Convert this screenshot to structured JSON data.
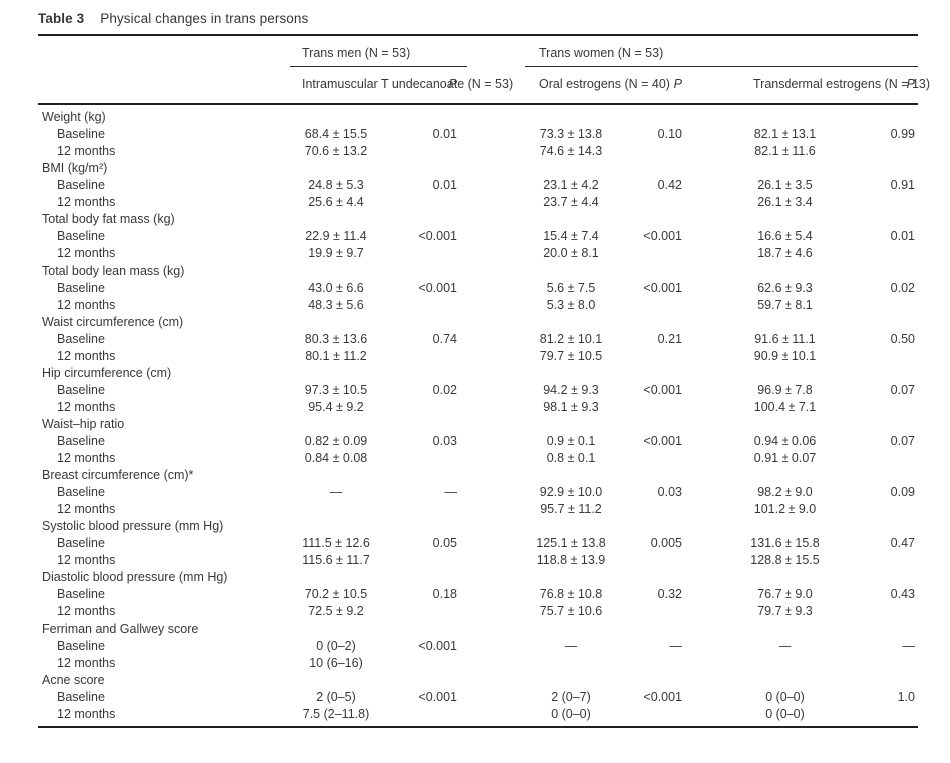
{
  "table": {
    "label": "Table 3",
    "title": "Physical changes in trans persons",
    "header": {
      "groups": [
        {
          "label": "Trans men (N = 53)"
        },
        {
          "label": "Trans women (N = 53)"
        }
      ],
      "subcolumns": [
        {
          "label": [
            "Intramuscular T",
            "undecanoate",
            "(N = 53)"
          ]
        },
        {
          "label": "P"
        },
        {
          "label": [
            "Oral",
            "estrogens",
            "(N = 40)"
          ]
        },
        {
          "label": "P"
        },
        {
          "label": [
            "Transdermal",
            "estrogens",
            "(N = 13)"
          ]
        },
        {
          "label": "P"
        }
      ]
    },
    "row_labels": {
      "baseline": "Baseline",
      "followup": "12 months"
    },
    "sections": [
      {
        "header": "Weight (kg)",
        "rows": [
          {
            "label": "Baseline",
            "cells": [
              "68.4 ± 15.5",
              "0.01",
              "73.3 ± 13.8",
              "0.10",
              "82.1 ± 13.1",
              "0.99"
            ]
          },
          {
            "label": "12 months",
            "cells": [
              "70.6 ± 13.2",
              "",
              "74.6 ± 14.3",
              "",
              "82.1 ± 11.6",
              ""
            ]
          }
        ]
      },
      {
        "header": "BMI (kg/m²)",
        "rows": [
          {
            "label": "Baseline",
            "cells": [
              "24.8 ± 5.3",
              "0.01",
              "23.1 ± 4.2",
              "0.42",
              "26.1 ± 3.5",
              "0.91"
            ]
          },
          {
            "label": "12 months",
            "cells": [
              "25.6 ± 4.4",
              "",
              "23.7 ± 4.4",
              "",
              "26.1 ± 3.4",
              ""
            ]
          }
        ]
      },
      {
        "header": "Total body fat mass (kg)",
        "rows": [
          {
            "label": "Baseline",
            "cells": [
              "22.9 ± 11.4",
              "<0.001",
              "15.4 ± 7.4",
              "<0.001",
              "16.6 ± 5.4",
              "0.01"
            ]
          },
          {
            "label": "12 months",
            "cells": [
              "19.9 ± 9.7",
              "",
              "20.0 ± 8.1",
              "",
              "18.7 ± 4.6",
              ""
            ]
          }
        ]
      },
      {
        "header": "Total body lean mass (kg)",
        "rows": [
          {
            "label": "Baseline",
            "cells": [
              "43.0 ± 6.6",
              "<0.001",
              "5.6 ± 7.5",
              "<0.001",
              "62.6 ± 9.3",
              "0.02"
            ]
          },
          {
            "label": "12 months",
            "cells": [
              "48.3 ± 5.6",
              "",
              "5.3 ± 8.0",
              "",
              "59.7 ± 8.1",
              ""
            ]
          }
        ]
      },
      {
        "header": "Waist circumference (cm)",
        "rows": [
          {
            "label": "Baseline",
            "cells": [
              "80.3 ± 13.6",
              "0.74",
              "81.2 ± 10.1",
              "0.21",
              "91.6 ± 11.1",
              "0.50"
            ]
          },
          {
            "label": "12 months",
            "cells": [
              "80.1 ± 11.2",
              "",
              "79.7 ± 10.5",
              "",
              "90.9 ± 10.1",
              ""
            ]
          }
        ]
      },
      {
        "header": "Hip circumference (cm)",
        "rows": [
          {
            "label": "Baseline",
            "cells": [
              "97.3 ± 10.5",
              "0.02",
              "94.2 ± 9.3",
              "<0.001",
              "96.9 ± 7.8",
              "0.07"
            ]
          },
          {
            "label": "12 months",
            "cells": [
              "95.4 ± 9.2",
              "",
              "98.1 ± 9.3",
              "",
              "100.4 ± 7.1",
              ""
            ]
          }
        ]
      },
      {
        "header": "Waist–hip ratio",
        "rows": [
          {
            "label": "Baseline",
            "cells": [
              "0.82 ± 0.09",
              "0.03",
              "0.9 ± 0.1",
              "<0.001",
              "0.94 ± 0.06",
              "0.07"
            ]
          },
          {
            "label": "12 months",
            "cells": [
              "0.84 ± 0.08",
              "",
              "0.8 ± 0.1",
              "",
              "0.91 ± 0.07",
              ""
            ]
          }
        ]
      },
      {
        "header": "Breast circumference (cm)*",
        "rows": [
          {
            "label": "Baseline",
            "cells": [
              "—",
              "—",
              "92.9 ± 10.0",
              "0.03",
              "98.2 ± 9.0",
              "0.09"
            ]
          },
          {
            "label": "12 months",
            "cells": [
              "",
              "",
              "95.7 ± 11.2",
              "",
              "101.2 ± 9.0",
              ""
            ]
          }
        ]
      },
      {
        "header": "Systolic blood pressure (mm Hg)",
        "rows": [
          {
            "label": "Baseline",
            "cells": [
              "111.5 ± 12.6",
              "0.05",
              "125.1 ± 13.8",
              "0.005",
              "131.6 ± 15.8",
              "0.47"
            ]
          },
          {
            "label": "12 months",
            "cells": [
              "115.6 ± 11.7",
              "",
              "118.8 ± 13.9",
              "",
              "128.8 ± 15.5",
              ""
            ]
          }
        ]
      },
      {
        "header": "Diastolic blood pressure (mm Hg)",
        "rows": [
          {
            "label": "Baseline",
            "cells": [
              "70.2 ± 10.5",
              "0.18",
              "76.8 ± 10.8",
              "0.32",
              "76.7 ± 9.0",
              "0.43"
            ]
          },
          {
            "label": "12 months",
            "cells": [
              "72.5 ± 9.2",
              "",
              "75.7 ± 10.6",
              "",
              "79.7 ± 9.3",
              ""
            ]
          }
        ]
      },
      {
        "header": "Ferriman and Gallwey score",
        "rows": [
          {
            "label": "Baseline",
            "cells": [
              "0 (0–2)",
              "<0.001",
              "—",
              "—",
              "—",
              "—"
            ]
          },
          {
            "label": "12 months",
            "cells": [
              "10 (6–16)",
              "",
              "",
              "",
              "",
              ""
            ]
          }
        ]
      },
      {
        "header": "Acne score",
        "rows": [
          {
            "label": "Baseline",
            "cells": [
              "2 (0–5)",
              "<0.001",
              "2 (0–7)",
              "<0.001",
              "0 (0–0)",
              "1.0"
            ]
          },
          {
            "label": "12 months",
            "cells": [
              "7.5 (2–11.8)",
              "",
              "0 (0–0)",
              "",
              "0 (0–0)",
              ""
            ]
          }
        ]
      }
    ]
  }
}
